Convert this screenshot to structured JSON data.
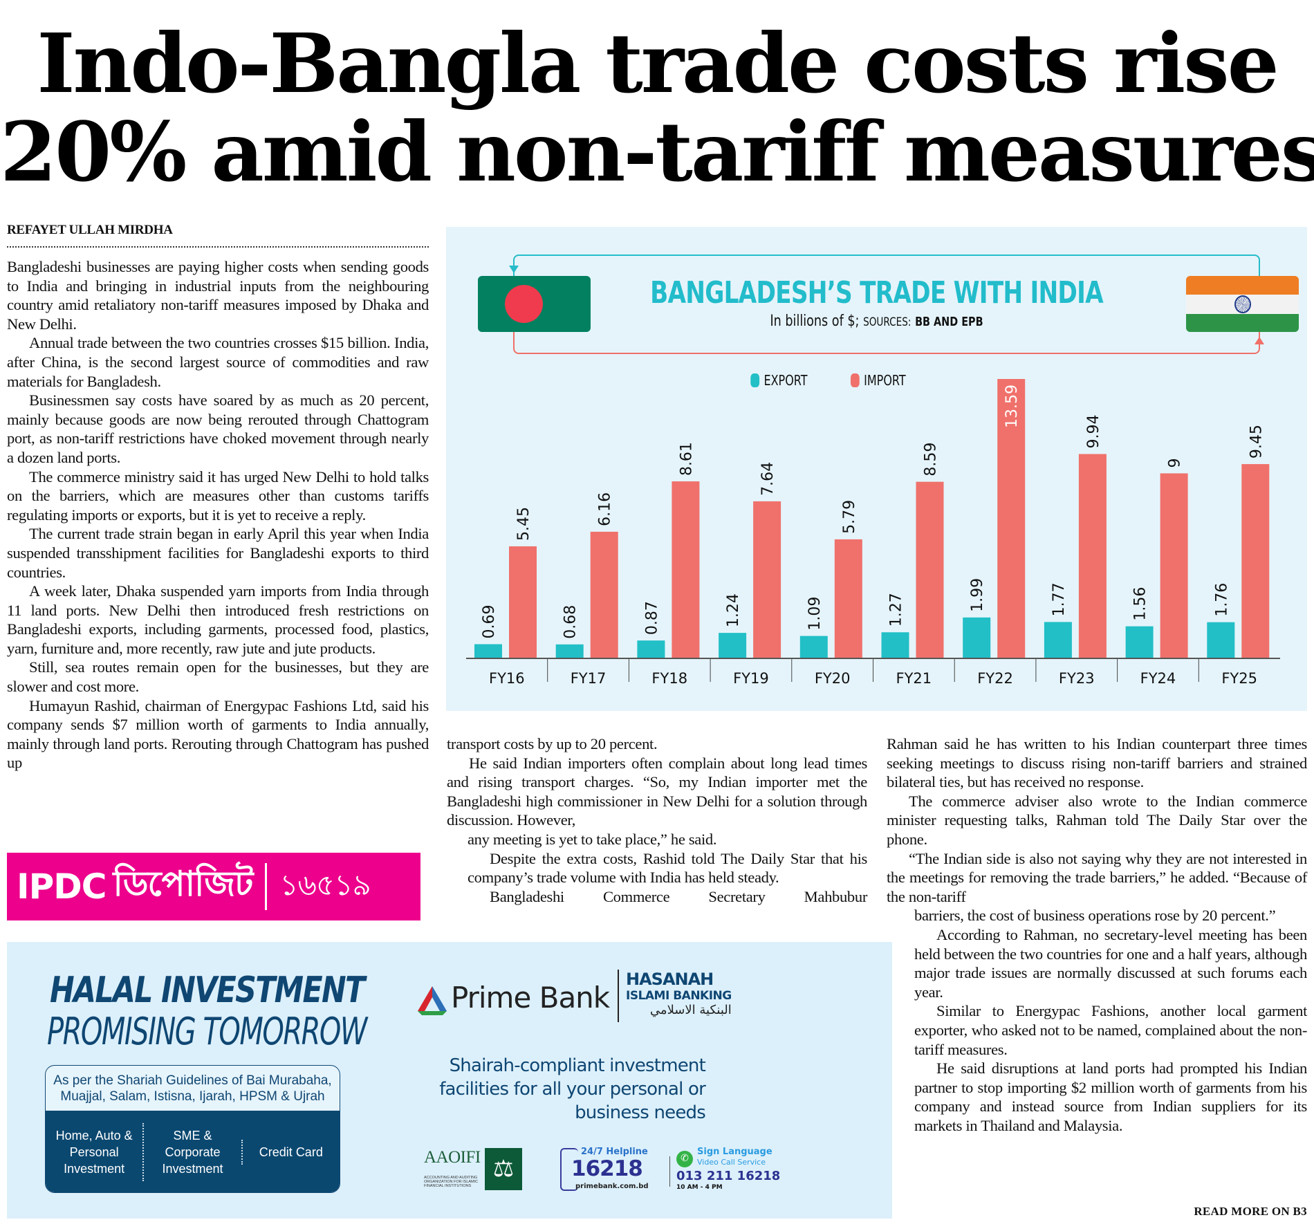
{
  "headline": {
    "line1": "Indo-Bangla trade costs rise",
    "line2": "20% amid non-tariff measures"
  },
  "byline": "REFAYET ULLAH MIRDHA",
  "article": {
    "col1": [
      "Bangladeshi businesses are paying higher costs when sending goods to India and bringing in industrial inputs from the neighbouring country amid retaliatory non-tariff measures imposed by Dhaka and New Delhi.",
      "Annual trade between the two countries crosses $15 billion. India, after China, is the second largest source of commodities and raw materials for Bangladesh.",
      "Businessmen say costs have soared by as much as 20 percent, mainly because goods are now being rerouted through Chattogram port, as non-tariff restrictions have choked movement through nearly a dozen land ports.",
      "The commerce ministry said it has urged New Delhi to hold talks on the barriers, which are measures other than customs tariffs regulating imports or exports, but it is yet to receive a reply.",
      "The current trade strain began in early April this year when India suspended transshipment facilities for Bangladeshi exports to third countries.",
      "A week later, Dhaka suspended yarn imports from India through 11 land ports. New Delhi then introduced fresh restrictions on Bangladeshi exports, including garments, processed food, plastics, yarn, furniture and, more recently, raw jute and jute products.",
      "Still, sea routes remain open for the businesses, but they are slower and cost more.",
      "Humayun Rashid, chairman of Energypac Fashions Ltd, said his company sends $7 million worth of garments to India annually, mainly through land ports. Rerouting through Chattogram has pushed up"
    ],
    "col2": [
      "transport costs by up to 20 percent.",
      "He said Indian importers often complain about long lead times and rising transport charges. “So, my Indian importer met the Bangladeshi high commissioner in New Delhi for a solution through discussion. However,",
      "any meeting is yet to take place,” he said.",
      "Despite the extra costs, Rashid told The Daily Star that his company’s trade volume with India has held steady.",
      "Bangladeshi Commerce Secretary Mahbubur"
    ],
    "col3": [
      "Rahman said he has written to his Indian counterpart three times seeking meetings to discuss rising non-tariff barriers and strained bilateral ties, but has received no response.",
      "The commerce adviser also wrote to the Indian commerce minister requesting talks, Rahman told The Daily Star over the phone.",
      "“The Indian side is also not saying why they are not interested in the meetings for removing the trade barriers,” he added. “Because of the non-tariff",
      "barriers, the cost of business operations rose by 20 percent.”",
      "According to Rahman, no secretary-level meeting has been held between the two countries for one and a half years, although major trade issues are normally discussed at such forums each year.",
      "Similar to Energypac Fashions, another local garment exporter, who asked not to be named, complained about the non-tariff measures.",
      "He said disruptions at land ports had prompted his Indian partner to stop importing $2 million worth of garments from his company and instead source from Indian suppliers for its markets in Thailand and Malaysia."
    ],
    "read_more": "READ MORE ON B3"
  },
  "infographic": {
    "flags": {
      "left": "bangladesh-flag",
      "right": "india-flag"
    },
    "colors": {
      "export": "#22bfc6",
      "import": "#f0716b",
      "title": "#22bccb",
      "background": "#e5f4fb"
    }
  },
  "chart_data": {
    "type": "bar",
    "title": "BANGLADESH’S TRADE WITH INDIA",
    "subtitle_main": "In billions of $;",
    "subtitle_sources_label": "SOURCES:",
    "subtitle_sources": "BB AND EPB",
    "xlabel": "",
    "ylabel": "",
    "ylim": [
      0,
      13.59
    ],
    "grid": false,
    "legend_position": "top-center",
    "categories": [
      "FY16",
      "FY17",
      "FY18",
      "FY19",
      "FY20",
      "FY21",
      "FY22",
      "FY23",
      "FY24",
      "FY25"
    ],
    "series": [
      {
        "name": "EXPORT",
        "color": "#22bfc6",
        "values": [
          0.69,
          0.68,
          0.87,
          1.24,
          1.09,
          1.27,
          1.99,
          1.77,
          1.56,
          1.76
        ],
        "labels": [
          "0.69",
          "0.68",
          "0.87",
          "1.24",
          "1.09",
          "1.27",
          "1.99",
          "1.77",
          "1.56",
          "1.76"
        ]
      },
      {
        "name": "IMPORT",
        "color": "#f0716b",
        "values": [
          5.45,
          6.16,
          8.61,
          7.64,
          5.79,
          8.59,
          13.59,
          9.94,
          9.0,
          9.45
        ],
        "labels": [
          "5.45",
          "6.16",
          "8.61",
          "7.64",
          "5.79",
          "8.59",
          "13.59",
          "9.94",
          "9",
          "9.45"
        ]
      }
    ]
  },
  "ipdc_banner": {
    "brand": "IPDC",
    "bangla_word": "ডিপোজিট",
    "number": "১৬৫১৯",
    "color": "#ec008c"
  },
  "ad": {
    "headline1": "HALAL INVESTMENT",
    "headline2": "PROMISING TOMORROW",
    "guidelines": "As per the Shariah Guidelines of Bai Murabaha, Muajjal, Salam, Istisna, Ijarah, HPSM & Ujrah",
    "products": [
      "Home, Auto & Personal Investment",
      "SME & Corporate Investment",
      "Credit Card"
    ],
    "bank_name": "Prime Bank",
    "hasanah": "HASANAH",
    "islami_banking": "ISLAMI BANKING",
    "arabic": "البنكية الاسلامي",
    "tagline": [
      "Shairah-compliant investment",
      "facilities for all your personal or",
      "business needs"
    ],
    "aaoifi": "AAOIFI",
    "aaoifi_full": "ACCOUNTING AND AUDITING ORGANIZATION FOR ISLAMIC FINANCIAL INSTITUTIONS",
    "helpline_label": "24/7 Helpline",
    "helpline_number": "16218",
    "website": "primebank.com.bd",
    "sign_language": "Sign Language",
    "video_call": "Video Call Service",
    "video_number": "013 211 16218",
    "hours": "10 AM - 4 PM",
    "brand_color": "#0f4672",
    "background": "#dcf0fb"
  }
}
